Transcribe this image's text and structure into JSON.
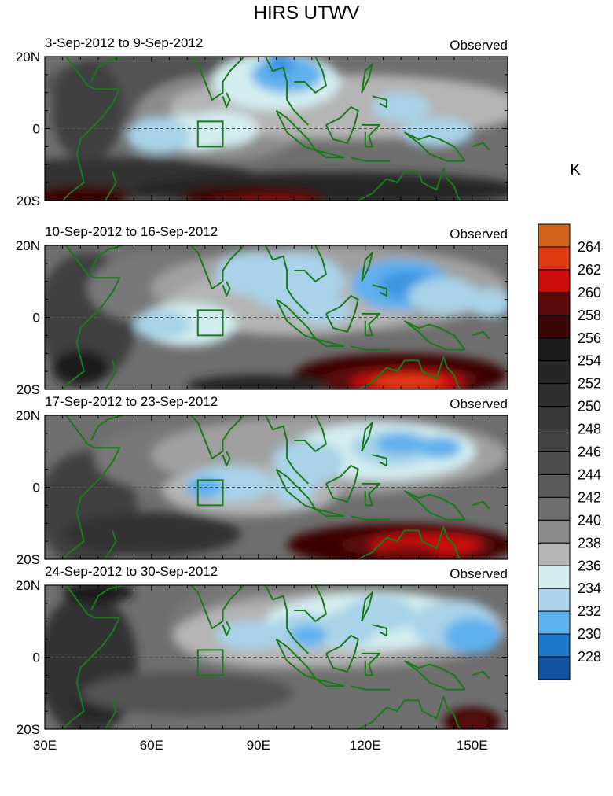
{
  "title": "HIRS UTWV",
  "colorbar": {
    "unit": "K",
    "levels": [
      228,
      230,
      232,
      234,
      236,
      238,
      240,
      242,
      244,
      246,
      248,
      250,
      252,
      254,
      256,
      258,
      260,
      262,
      264
    ],
    "colors": [
      "#1c1e7c",
      "#1253a0",
      "#1c77cf",
      "#3d96e2",
      "#5fb0ee",
      "#a8d3e8",
      "#d3ecef",
      "#b4b4b4",
      "#a0a0a0",
      "#8c8c8c",
      "#787878",
      "#646464",
      "#525252",
      "#414141",
      "#333333",
      "#262626",
      "#1a1a1a",
      "#3a0606",
      "#5a0808",
      "#7c0a0a",
      "#cc0b0b",
      "#e03a12",
      "#d0621c"
    ]
  },
  "x_axis": {
    "ticks": [
      "30E",
      "60E",
      "90E",
      "120E",
      "150E"
    ]
  },
  "y_axis": {
    "ticks": [
      "20N",
      "0",
      "20S"
    ]
  },
  "panels": [
    {
      "period": "3-Sep-2012 to 9-Sep-2012",
      "label": "Observed"
    },
    {
      "period": "10-Sep-2012 to 16-Sep-2012",
      "label": "Observed"
    },
    {
      "period": "17-Sep-2012 to 23-Sep-2012",
      "label": "Observed"
    },
    {
      "period": "24-Sep-2012 to 30-Sep-2012",
      "label": "Observed"
    }
  ]
}
